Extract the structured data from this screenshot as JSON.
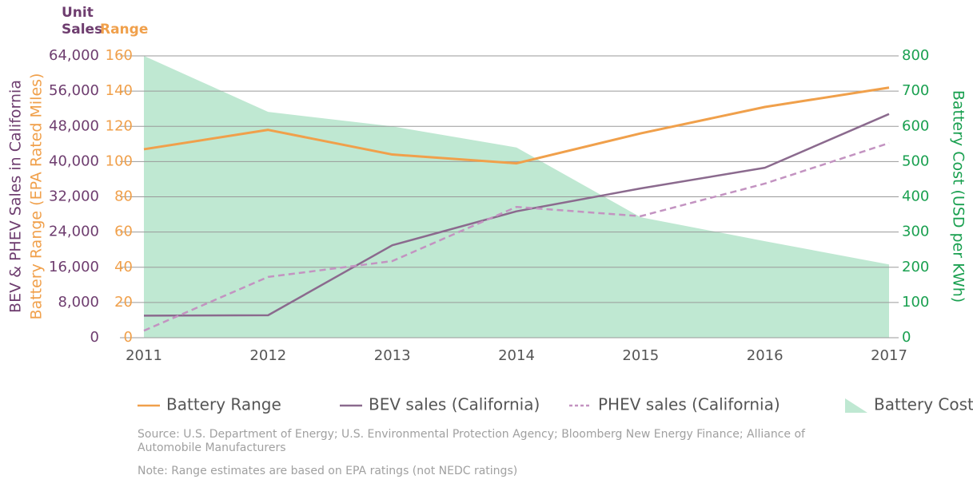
{
  "chart_data": {
    "type": "line",
    "categories": [
      "2011",
      "2012",
      "2013",
      "2014",
      "2015",
      "2016",
      "2017"
    ],
    "series": [
      {
        "name": "Battery Range",
        "color": "#f0a04b",
        "axis": "y3",
        "values": [
          107,
          118,
          104,
          99,
          116,
          131,
          142
        ]
      },
      {
        "name": "BEV sales (California)",
        "color": "#8b6a8e",
        "axis": "y",
        "values": [
          5000,
          5100,
          21000,
          28700,
          33900,
          38600,
          50800
        ]
      },
      {
        "name": "PHEV sales (California)",
        "color": "#c393c1",
        "axis": "y",
        "dashed": true,
        "values": [
          1600,
          13800,
          17400,
          29700,
          27600,
          35000,
          44200
        ]
      },
      {
        "name": "Battery Cost",
        "color": "#bfe8d2",
        "axis": "y2",
        "area": true,
        "values": [
          800,
          641,
          600,
          540,
          342,
          274,
          208
        ]
      }
    ],
    "ylabel": "BEV & PHEV Sales in California",
    "y3label": "Battery Range (EPA Rated Miles)",
    "y2label": "Battery Cost (USD per KWh)",
    "ylim": [
      0,
      64000
    ],
    "yticks": [
      0,
      {
        "value": 8000,
        "label": "8,000"
      },
      {
        "value": 16000,
        "label": "16,000"
      },
      {
        "value": 24000,
        "label": "24,000"
      },
      {
        "value": 32000,
        "label": "32,000"
      },
      {
        "value": 40000,
        "label": "40,000"
      },
      {
        "value": 48000,
        "label": "48,000"
      },
      {
        "value": 56000,
        "label": "56,000"
      },
      {
        "value": 64000,
        "label": "64,000"
      }
    ],
    "y3lim": [
      0,
      160
    ],
    "y3ticks": [
      0,
      20,
      40,
      60,
      80,
      100,
      120,
      140,
      160
    ],
    "y2lim": [
      0,
      800
    ],
    "y2ticks": [
      0,
      100,
      200,
      300,
      400,
      500,
      600,
      700,
      800
    ],
    "grid": true,
    "legend": "bottom",
    "annotations": [
      "Unit",
      "Sales",
      "Range"
    ],
    "source": "Source: U.S. Department of Energy; U.S. Environmental Protection Agency; Bloomberg New Energy Finance; Alliance of Automobile Manufacturers",
    "note": "Note: Range estimates are based on EPA ratings (not NEDC ratings)"
  }
}
